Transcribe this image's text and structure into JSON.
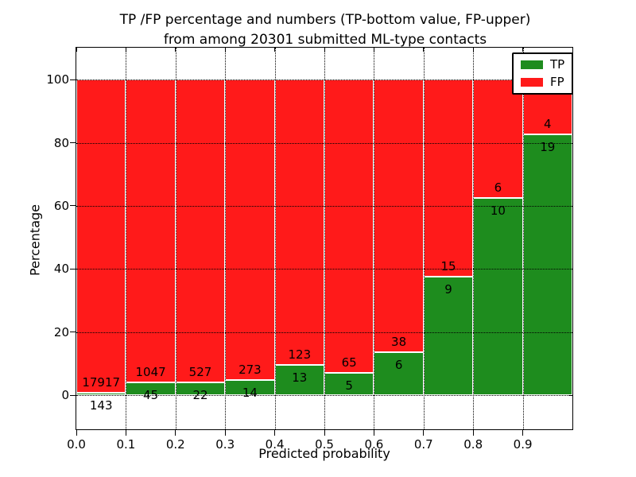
{
  "figure": {
    "title_line1": "TP /FP percentage and numbers (TP-bottom value, FP-upper)",
    "title_line2": "from among 20301 submitted ML-type contacts",
    "xlabel": "Predicted probability",
    "ylabel": "Percentage"
  },
  "legend": {
    "items": [
      {
        "label": "TP",
        "color": "#1e8c1e"
      },
      {
        "label": "FP",
        "color": "#ff1a1a"
      }
    ]
  },
  "chart_data": {
    "type": "bar",
    "variant": "stacked-percentage",
    "title": "TP /FP percentage and numbers (TP-bottom value, FP-upper) from among 20301 submitted ML-type contacts",
    "xlabel": "Predicted probability",
    "ylabel": "Percentage",
    "total_submitted": 20301,
    "bin_edges": [
      0.0,
      0.1,
      0.2,
      0.3,
      0.4,
      0.5,
      0.6,
      0.7,
      0.8,
      0.9,
      1.0
    ],
    "categories": [
      "0.0-0.1",
      "0.1-0.2",
      "0.2-0.3",
      "0.3-0.4",
      "0.4-0.5",
      "0.5-0.6",
      "0.6-0.7",
      "0.7-0.8",
      "0.8-0.9",
      "0.9-1.0"
    ],
    "series": [
      {
        "name": "TP",
        "color": "#1e8c1e",
        "counts": [
          143,
          45,
          22,
          14,
          13,
          5,
          6,
          9,
          10,
          19
        ],
        "percent": [
          0.79,
          4.12,
          4.01,
          4.88,
          9.56,
          7.14,
          13.64,
          37.5,
          62.5,
          82.61
        ]
      },
      {
        "name": "FP",
        "color": "#ff1a1a",
        "counts": [
          17917,
          1047,
          527,
          273,
          123,
          65,
          38,
          15,
          6,
          4
        ],
        "percent": [
          99.21,
          95.88,
          95.99,
          95.12,
          90.44,
          92.86,
          86.36,
          62.5,
          37.5,
          17.39
        ]
      }
    ],
    "bar_labels": "TP count printed just below green/red boundary, FP count just above it",
    "xticks": [
      "0.0",
      "0.1",
      "0.2",
      "0.3",
      "0.4",
      "0.5",
      "0.6",
      "0.7",
      "0.8",
      "0.9"
    ],
    "yticks": [
      0,
      20,
      40,
      60,
      80,
      100
    ],
    "xlim": [
      0,
      1
    ],
    "ylim": [
      -10.8,
      110.1
    ],
    "grid": true,
    "grid_style": "dotted",
    "legend_position": "upper-right"
  }
}
